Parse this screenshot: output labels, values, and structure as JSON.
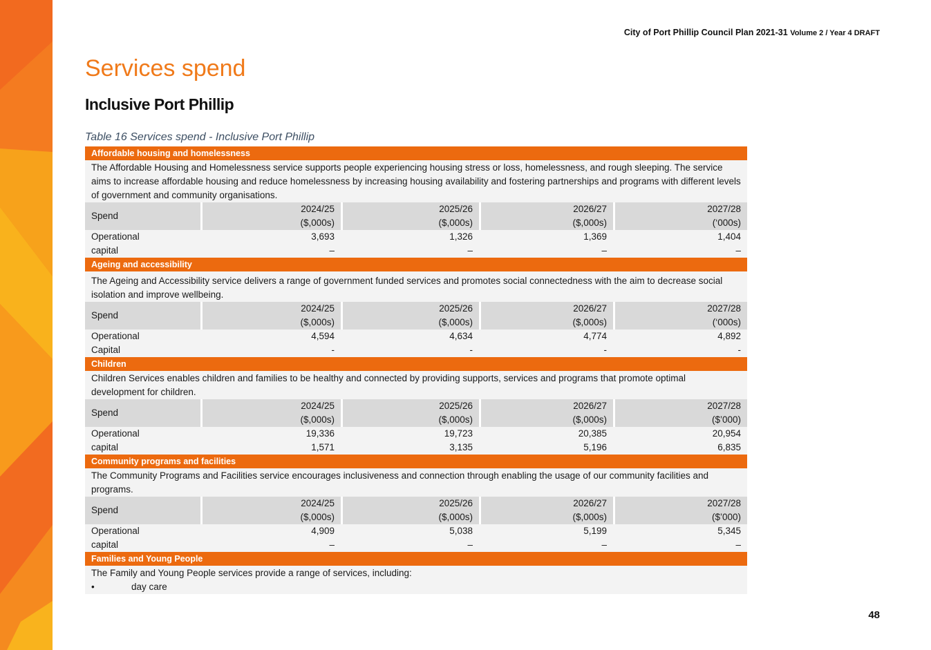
{
  "header": {
    "doc_title": "City of Port Phillip Council Plan 2021-31",
    "doc_sub": "Volume 2 / Year 4 DRAFT"
  },
  "page_title": "Services spend",
  "section_heading": "Inclusive Port Phillip",
  "table_caption": "Table 16 Services spend - Inclusive Port Phillip",
  "services": [
    {
      "name": "Affordable housing and homelessness",
      "description": "The Affordable Housing and Homelessness service supports people experiencing housing stress or loss, homelessness, and rough sleeping. The service aims to increase affordable housing and reduce homelessness by increasing housing availability and fostering partnerships and programs with different levels of government and community organisations.",
      "spend_label": "Spend",
      "years": [
        {
          "year": "2024/25",
          "unit": "($,000s)"
        },
        {
          "year": "2025/26",
          "unit": "($,000s)"
        },
        {
          "year": "2026/27",
          "unit": "($,000s)"
        },
        {
          "year": "2027/28",
          "unit": "(‘000s)"
        }
      ],
      "rows": [
        {
          "label": "Operational",
          "values": [
            "3,693",
            "1,326",
            "1,369",
            "1,404"
          ]
        },
        {
          "label": "capital",
          "values": [
            "–",
            "–",
            "–",
            "–"
          ]
        }
      ]
    },
    {
      "name": "Ageing and accessibility",
      "description": "The Ageing and Accessibility service delivers a range of government funded services and promotes social connectedness with the aim to decrease social isolation and improve wellbeing.",
      "spend_label": "Spend",
      "years": [
        {
          "year": "2024/25",
          "unit": "($,000s)"
        },
        {
          "year": "2025/26",
          "unit": "($,000s)"
        },
        {
          "year": "2026/27",
          "unit": "($,000s)"
        },
        {
          "year": "2027/28",
          "unit": "(‘000s)"
        }
      ],
      "rows": [
        {
          "label": "Operational",
          "values": [
            "4,594",
            "4,634",
            "4,774",
            "4,892"
          ]
        },
        {
          "label": "Capital",
          "values": [
            "-",
            "-",
            "-",
            "-"
          ]
        }
      ]
    },
    {
      "name": "Children",
      "description": "Children Services enables children and families to be healthy and connected by providing supports, services and programs that promote optimal development for children.",
      "spend_label": "Spend",
      "years": [
        {
          "year": "2024/25",
          "unit": "($,000s)"
        },
        {
          "year": "2025/26",
          "unit": "($,000s)"
        },
        {
          "year": "2026/27",
          "unit": "($,000s)"
        },
        {
          "year": "2027/28",
          "unit": "($’000)"
        }
      ],
      "rows": [
        {
          "label": "Operational",
          "values": [
            "19,336",
            "19,723",
            "20,385",
            "20,954"
          ]
        },
        {
          "label": "capital",
          "values": [
            "1,571",
            "3,135",
            "5,196",
            "6,835"
          ]
        }
      ]
    },
    {
      "name": "Community programs and facilities",
      "description": "The Community Programs and Facilities service encourages inclusiveness and connection through enabling the usage of our community facilities and programs.",
      "spend_label": "Spend",
      "years": [
        {
          "year": "2024/25",
          "unit": "($,000s)"
        },
        {
          "year": "2025/26",
          "unit": "($,000s)"
        },
        {
          "year": "2026/27",
          "unit": "($,000s)"
        },
        {
          "year": "2027/28",
          "unit": "($’000)"
        }
      ],
      "rows": [
        {
          "label": "Operational",
          "values": [
            "4,909",
            "5,038",
            "5,199",
            "5,345"
          ]
        },
        {
          "label": "capital",
          "values": [
            "–",
            "–",
            "–",
            "–"
          ]
        }
      ]
    }
  ],
  "families": {
    "name": "Families and Young People",
    "description": "The Family and Young People services provide a range of services, including:",
    "bullet_symbol": "•",
    "bullet_item": "day care"
  },
  "page_number": "48",
  "colors": {
    "accent_orange": "#ec6a0f",
    "title_orange": "#f07a1a",
    "header_grey": "#d9d9d9",
    "row_grey": "#f3f3f3",
    "caption_blue": "#3d4f63"
  }
}
